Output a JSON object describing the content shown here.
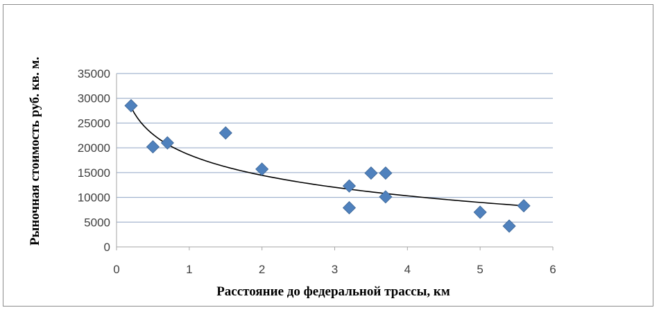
{
  "chart_data": {
    "type": "scatter",
    "title": "",
    "xlabel": "Расстояние до федеральной трассы, км",
    "ylabel": "Рыночная  стоимость  руб.  кв.  м.",
    "xlim": [
      0,
      6
    ],
    "ylim": [
      0,
      35000
    ],
    "x_ticks": [
      "0",
      "1",
      "2",
      "3",
      "4",
      "5",
      "6"
    ],
    "y_ticks": [
      "0",
      "5000",
      "10000",
      "15000",
      "20000",
      "25000",
      "30000",
      "35000"
    ],
    "grid": "horizontal",
    "legend": "none",
    "marker": "diamond",
    "series": [
      {
        "points": [
          {
            "x": 0.2,
            "y": 28500
          },
          {
            "x": 0.5,
            "y": 20200
          },
          {
            "x": 0.7,
            "y": 21000
          },
          {
            "x": 1.5,
            "y": 23000
          },
          {
            "x": 2.0,
            "y": 15700
          },
          {
            "x": 3.2,
            "y": 12300
          },
          {
            "x": 3.2,
            "y": 7900
          },
          {
            "x": 3.5,
            "y": 14900
          },
          {
            "x": 3.7,
            "y": 14900
          },
          {
            "x": 3.7,
            "y": 10100
          },
          {
            "x": 5.0,
            "y": 7000
          },
          {
            "x": 5.4,
            "y": 4200
          },
          {
            "x": 5.6,
            "y": 8300
          }
        ]
      }
    ],
    "trendline": {
      "type": "logarithmic",
      "x_start": 0.2,
      "x_end": 5.6,
      "y_start": 28200,
      "y_at_1": 18400,
      "y_end": 8300
    },
    "colors": {
      "marker": "#4f81bd",
      "marker_stroke": "#3c6595",
      "gridline": "#8fa4c4",
      "axis": "#a6a6a6",
      "trendline": "#000000"
    }
  }
}
